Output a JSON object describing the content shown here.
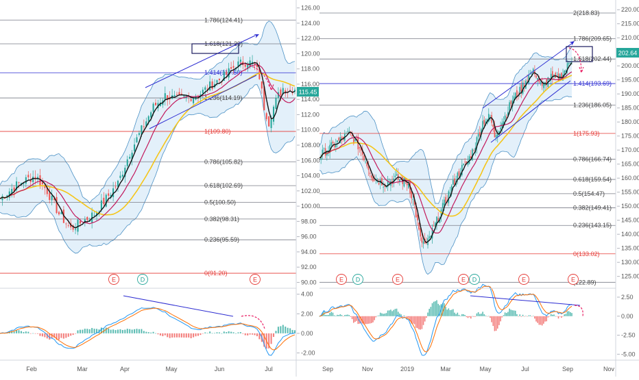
{
  "colors": {
    "up": "#26a69a",
    "down": "#ef5350",
    "black_ma": "#111111",
    "red_ma": "#c2185b",
    "yellow_ma": "#f5c518",
    "band_line": "#4a90c4",
    "band_fill": "#e3f0fa",
    "trend": "#2b2bd1",
    "fib_grey": "#787b86",
    "fib_red": "#e53935",
    "fib_blue": "#2b2bd1",
    "macd": "#2196f3",
    "signal": "#ff6d00",
    "arrow_pink": "#e91e63",
    "price_badge": "#26a69a"
  },
  "chart_data": [
    {
      "type": "candlestick",
      "panel": "left",
      "x_ticks": [
        "Feb",
        "Mar",
        "Apr",
        "May",
        "Jun",
        "Jul"
      ],
      "y_ticks": [
        "126.00",
        "124.00",
        "122.00",
        "120.00",
        "118.00",
        "116.00",
        "114.00",
        "112.00",
        "110.00",
        "108.00",
        "106.00",
        "104.00",
        "102.00",
        "100.00",
        "98.00",
        "96.00",
        "94.00",
        "92.00",
        "90.00"
      ],
      "ylim": [
        89.5,
        126.5
      ],
      "last_price": "115.45",
      "close_trend": [
        [
          0,
          101
        ],
        [
          8,
          103
        ],
        [
          15,
          104
        ],
        [
          20,
          102
        ],
        [
          25,
          99
        ],
        [
          30,
          97
        ],
        [
          35,
          98
        ],
        [
          40,
          99
        ],
        [
          45,
          101
        ],
        [
          50,
          103
        ],
        [
          55,
          107
        ],
        [
          60,
          110
        ],
        [
          65,
          113
        ],
        [
          70,
          114.5
        ],
        [
          75,
          114
        ],
        [
          80,
          114.3
        ],
        [
          85,
          114.8
        ],
        [
          90,
          116
        ],
        [
          95,
          117
        ],
        [
          100,
          118.5
        ],
        [
          105,
          119
        ],
        [
          108,
          118.5
        ],
        [
          110,
          117
        ],
        [
          112,
          113
        ],
        [
          114,
          111
        ],
        [
          116,
          113
        ],
        [
          118,
          114.5
        ],
        [
          120,
          115.5
        ],
        [
          122,
          115.2
        ],
        [
          125,
          115.45
        ]
      ],
      "fib_levels": [
        {
          "label": "1.786(124.41)",
          "value": 124.41,
          "kind": "grey"
        },
        {
          "label": "1.618(121.29)",
          "value": 121.29,
          "kind": "grey"
        },
        {
          "label": "1.414(117.50)",
          "value": 117.5,
          "kind": "blue"
        },
        {
          "label": "1.236(114.19)",
          "value": 114.19,
          "kind": "grey"
        },
        {
          "label": "1(109.80)",
          "value": 109.8,
          "kind": "red"
        },
        {
          "label": "0.786(105.82)",
          "value": 105.82,
          "kind": "grey"
        },
        {
          "label": "0.618(102.69)",
          "value": 102.69,
          "kind": "grey"
        },
        {
          "label": "0.5(100.50)",
          "value": 100.5,
          "kind": "grey"
        },
        {
          "label": "0.382(98.31)",
          "value": 98.31,
          "kind": "grey"
        },
        {
          "label": "0.236(95.59)",
          "value": 95.59,
          "kind": "grey"
        },
        {
          "label": "0(91.20)",
          "value": 91.2,
          "kind": "red"
        }
      ],
      "event_markers": [
        "E",
        "D",
        "E"
      ],
      "macd_y_ticks": [
        "4.00",
        "2.00",
        "0.00",
        "-2.00"
      ],
      "macd_ylim": [
        -2.6,
        4.4
      ]
    },
    {
      "type": "candlestick",
      "panel": "right",
      "x_ticks": [
        "Sep",
        "Nov",
        "2019",
        "Mar",
        "May",
        "Jul",
        "Sep",
        "Nov"
      ],
      "y_ticks": [
        "220.00",
        "215.00",
        "210.00",
        "205.00",
        "200.00",
        "195.00",
        "190.00",
        "185.00",
        "180.00",
        "175.00",
        "170.00",
        "165.00",
        "160.00",
        "155.00",
        "150.00",
        "145.00",
        "140.00",
        "135.00",
        "130.00",
        "125.00"
      ],
      "ylim": [
        121.5,
        222
      ],
      "last_price": "202.64",
      "close_trend": [
        [
          0,
          168
        ],
        [
          10,
          172
        ],
        [
          20,
          176
        ],
        [
          28,
          170
        ],
        [
          36,
          160
        ],
        [
          44,
          158
        ],
        [
          52,
          160
        ],
        [
          60,
          158
        ],
        [
          64,
          150
        ],
        [
          68,
          138
        ],
        [
          72,
          136
        ],
        [
          76,
          141
        ],
        [
          80,
          146
        ],
        [
          85,
          152
        ],
        [
          90,
          158
        ],
        [
          95,
          163
        ],
        [
          100,
          166
        ],
        [
          105,
          172
        ],
        [
          110,
          180
        ],
        [
          115,
          182
        ],
        [
          118,
          175
        ],
        [
          121,
          178
        ],
        [
          125,
          182
        ],
        [
          130,
          188
        ],
        [
          135,
          191
        ],
        [
          140,
          196
        ],
        [
          145,
          198
        ],
        [
          150,
          192
        ],
        [
          155,
          196
        ],
        [
          160,
          195
        ],
        [
          165,
          198
        ],
        [
          170,
          202.64
        ]
      ],
      "fib_levels": [
        {
          "label": "2(218.83)",
          "value": 218.83,
          "kind": "grey"
        },
        {
          "label": "1.786(209.65)",
          "value": 209.65,
          "kind": "grey"
        },
        {
          "label": "1.618(202.44)",
          "value": 202.44,
          "kind": "grey"
        },
        {
          "label": "1.414(193.69)",
          "value": 193.69,
          "kind": "blue"
        },
        {
          "label": "1.236(186.05)",
          "value": 186.05,
          "kind": "grey"
        },
        {
          "label": "1(175.93)",
          "value": 175.93,
          "kind": "red"
        },
        {
          "label": "0.786(166.74)",
          "value": 166.74,
          "kind": "grey"
        },
        {
          "label": "0.618(159.54)",
          "value": 159.54,
          "kind": "grey"
        },
        {
          "label": "0.5(154.47)",
          "value": 154.47,
          "kind": "grey"
        },
        {
          "label": "0.382(149.41)",
          "value": 149.41,
          "kind": "grey"
        },
        {
          "label": "0.236(143.15)",
          "value": 143.15,
          "kind": "grey"
        },
        {
          "label": "0(133.02)",
          "value": 133.02,
          "kind": "red"
        },
        {
          "label": "(122.89)",
          "value": 122.89,
          "kind": "grey"
        }
      ],
      "event_markers": [
        "E",
        "D",
        "E",
        "E",
        "D",
        "E",
        "E"
      ],
      "macd_y_ticks": [
        "2.50",
        "0.00",
        "-2.50",
        "-5.00"
      ],
      "macd_ylim": [
        -5.6,
        3.4
      ]
    }
  ]
}
